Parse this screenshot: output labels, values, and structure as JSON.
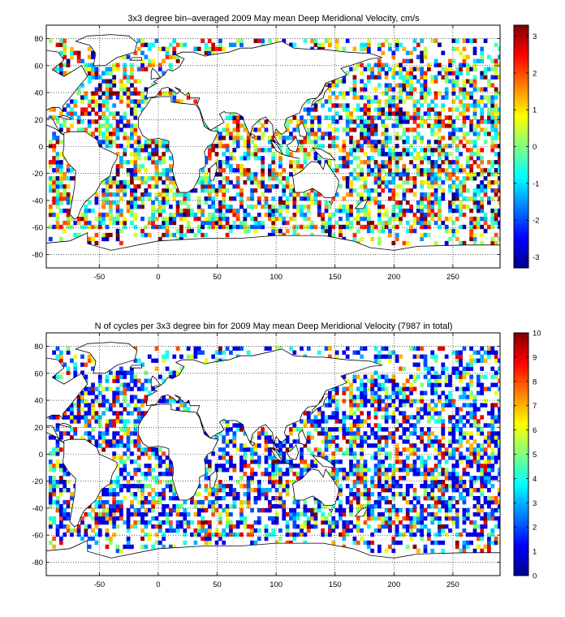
{
  "chart_data": [
    {
      "type": "heatmap",
      "title": "3x3 degree bin–averaged 2009 May mean Deep Meridional Velocity, cm/s",
      "xlabel": "",
      "ylabel": "",
      "xlim": [
        -95,
        290
      ],
      "ylim": [
        -90,
        90
      ],
      "x_ticks": [
        -50,
        0,
        50,
        100,
        150,
        200,
        250
      ],
      "y_ticks": [
        80,
        60,
        40,
        20,
        0,
        -20,
        -40,
        -60,
        -80
      ],
      "grid": true,
      "colorbar": {
        "range": [
          -3.3,
          3.3
        ],
        "ticks": [
          3,
          2,
          1,
          0,
          -1,
          -2,
          -3
        ],
        "colormap": "jet"
      },
      "bin_size_deg": 3,
      "overlay": "world coastlines"
    },
    {
      "type": "heatmap",
      "title": "N of cycles per 3x3 degree bin for 2009 May mean Deep Meridional Velocity (7987 in total)",
      "xlabel": "",
      "ylabel": "",
      "xlim": [
        -95,
        290
      ],
      "ylim": [
        -90,
        90
      ],
      "x_ticks": [
        -50,
        0,
        50,
        100,
        150,
        200,
        250
      ],
      "y_ticks": [
        80,
        60,
        40,
        20,
        0,
        -20,
        -40,
        -60,
        -80
      ],
      "grid": true,
      "colorbar": {
        "range": [
          0,
          10
        ],
        "ticks": [
          10,
          9,
          8,
          7,
          6,
          5,
          4,
          3,
          2,
          1,
          0
        ],
        "colormap": "jet"
      },
      "bin_size_deg": 3,
      "total_cycles": 7987,
      "overlay": "world coastlines"
    }
  ]
}
